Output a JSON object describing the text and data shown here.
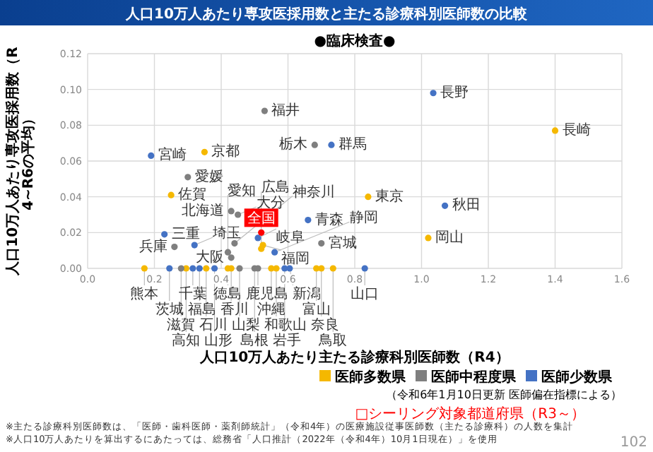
{
  "chart_data": {
    "type": "scatter",
    "title": "人口10万人あたり専攻医採用数と主たる診療科別医師数の比較",
    "subtitle": "●臨床検査●",
    "xlabel": "人口10万人あたり主たる診療科別医師数（R4）",
    "ylabel": "人口10万人あたり専攻医採用数（R4~R6の平均）",
    "xlim": [
      0,
      1.6
    ],
    "xticks": [
      {
        "value": 0,
        "label": "0.0"
      },
      {
        "value": 0.2,
        "label": "0.2"
      },
      {
        "value": 0.4,
        "label": "0.4"
      },
      {
        "value": 0.6,
        "label": "0.6"
      },
      {
        "value": 0.8,
        "label": "0.8"
      },
      {
        "value": 1,
        "label": "1.0"
      },
      {
        "value": 1.2,
        "label": "1.2"
      },
      {
        "value": 1.4,
        "label": "1.4"
      },
      {
        "value": 1.6,
        "label": "1.6"
      }
    ],
    "ylim": [
      0,
      0.12
    ],
    "yticks": [
      {
        "value": 0,
        "label": "0.00"
      },
      {
        "value": 0.02,
        "label": "0.02"
      },
      {
        "value": 0.04,
        "label": "0.04"
      },
      {
        "value": 0.06,
        "label": "0.06"
      },
      {
        "value": 0.08,
        "label": "0.08"
      },
      {
        "value": 0.1,
        "label": "0.10"
      },
      {
        "value": 0.12,
        "label": "0.12"
      }
    ],
    "grid": true,
    "legend": "bottom right",
    "marker": "circle",
    "series": [
      {
        "name": "医師多数県",
        "color": "#f5b800",
        "x": [
          0.35,
          1.4,
          0.84,
          1.02,
          0.25,
          0.525,
          0.52,
          0.17,
          0.295,
          0.355,
          0.42,
          0.43,
          0.55,
          0.565,
          0.685,
          0.7,
          0.735
        ],
        "values": [
          0.065,
          0.077,
          0.04,
          0.017,
          0.041,
          0.013,
          0.011,
          0,
          0,
          0,
          0,
          0,
          0,
          0,
          0,
          0,
          0
        ],
        "value_labels": [
          "京都",
          "長崎",
          "東京",
          "岡山",
          "佐賀",
          "福岡",
          "広島",
          "熊本",
          "高知",
          "石川",
          "徳島",
          "香川",
          "沖縄",
          "和歌山",
          "富山",
          "奈良",
          "鳥取"
        ]
      },
      {
        "name": "医師中程度県",
        "color": "#7f7f7f",
        "x": [
          0.3,
          0.53,
          0.68,
          0.43,
          0.45,
          0.26,
          0.44,
          0.42,
          0.7,
          0.43,
          0.28,
          0.455,
          0.5,
          0.51
        ],
        "values": [
          0.051,
          0.088,
          0.069,
          0.032,
          0.03,
          0.012,
          0.014,
          0.009,
          0.014,
          0.006,
          0,
          0,
          0,
          0
        ],
        "value_labels": [
          "愛媛",
          "福井",
          "栃木",
          "北海道",
          "大分",
          "兵庫",
          "神奈川",
          "愛知",
          "宮城",
          "大阪",
          "滋賀",
          "山梨",
          "島根",
          "鹿児島"
        ]
      },
      {
        "name": "医師少数県",
        "color": "#4472c4",
        "x": [
          0.19,
          0.73,
          1.035,
          1.07,
          0.83,
          0.66,
          0.23,
          0.32,
          0.51,
          0.56,
          0.245,
          0.315,
          0.335,
          0.38,
          0.59,
          0.605
        ],
        "values": [
          0.063,
          0.069,
          0.098,
          0.035,
          0,
          0.027,
          0.019,
          0.013,
          0.017,
          0.009,
          0,
          0,
          0,
          0,
          0,
          0
        ],
        "value_labels": [
          "宮崎",
          "群馬",
          "長野",
          "秋田",
          "山口",
          "青森",
          "三重",
          "埼玉",
          "岐阜",
          "静岡",
          "茨城",
          "千葉",
          "福島",
          "山形",
          "岩手",
          "新潟"
        ]
      },
      {
        "name": "全国",
        "color": "#ff0000",
        "x": [
          0.52
        ],
        "values": [
          0.02
        ]
      }
    ],
    "annotations": [
      "（令和6年1月10日更新 医師偏在指標による）",
      "□シーリング対象都道府県（R3～）",
      "※主たる診療科別医師数は、「医師・歯科医師・薬剤師統計」（令和4年）の医療施設従事医師数（主たる診療科）の人数を集計",
      "※人口10万人あたりを算出するにあたっては、総務省「人口推計（2022年（令和4年）10月1日現在）」を使用",
      "102"
    ]
  }
}
